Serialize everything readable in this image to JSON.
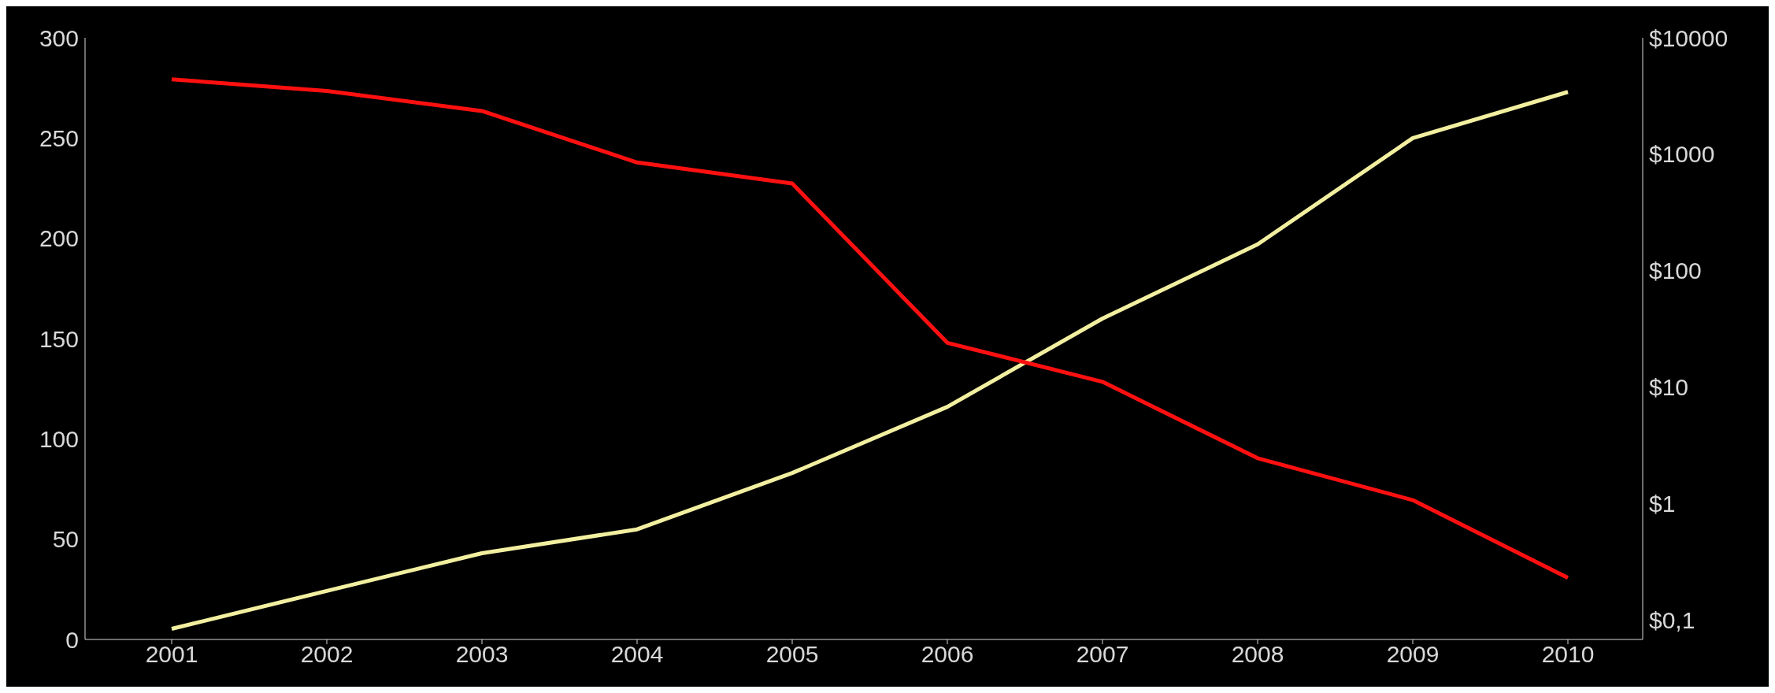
{
  "chart_data": {
    "type": "line",
    "categories": [
      "2001",
      "2002",
      "2003",
      "2004",
      "2005",
      "2006",
      "2007",
      "2008",
      "2009",
      "2010"
    ],
    "series": [
      {
        "color": "#f2f0a0",
        "values": [
          5.3,
          24.2,
          43,
          54.9,
          83,
          116,
          160,
          197,
          250,
          273
        ]
      },
      {
        "color": "#ff1010",
        "axis": "y2",
        "values": [
          4400,
          3500,
          2350,
          850,
          560,
          24,
          11.1,
          2.45,
          1.07,
          0.23
        ]
      }
    ],
    "ylim": [
      0,
      300
    ],
    "yticks": [
      0,
      50,
      100,
      150,
      200,
      250,
      300
    ],
    "y2lim": [
      0.068,
      10000
    ],
    "y2ticks": [
      {
        "value": 0.1,
        "label": "$0,1"
      },
      {
        "value": 1,
        "label": "$1"
      },
      {
        "value": 10,
        "label": "$10"
      },
      {
        "value": 100,
        "label": "$100"
      },
      {
        "value": 1000,
        "label": "$1000"
      },
      {
        "value": 10000,
        "label": "$10000"
      }
    ],
    "log": "y2",
    "grid": false,
    "legend": false,
    "marker": "none",
    "line_style": "solid"
  }
}
